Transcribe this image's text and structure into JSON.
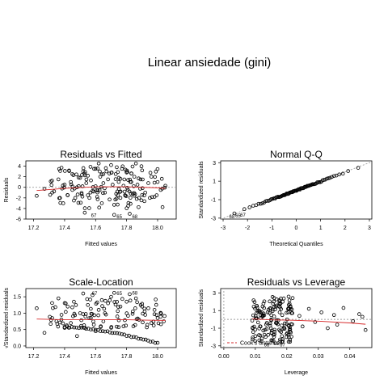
{
  "page": {
    "title": "Linear ansiedade (gini)"
  },
  "colors": {
    "points": "#000000",
    "smooth": "#d62728",
    "reference": "#9e9e9e",
    "background": "#ffffff"
  },
  "chart_data": [
    {
      "id": "residuals-vs-fitted",
      "type": "scatter",
      "title": "Residuals vs Fitted",
      "xlabel": "Fitted values",
      "ylabel": "Residuals",
      "xlim": [
        17.15,
        18.12
      ],
      "ylim": [
        -6,
        5
      ],
      "xticks": [
        17.2,
        17.4,
        17.6,
        17.8,
        18.0
      ],
      "xtick_labels": [
        "17.2",
        "17.4",
        "17.6",
        "17.8",
        "18.0"
      ],
      "yticks": [
        -6,
        -4,
        -2,
        0,
        2,
        4
      ],
      "ytick_labels": [
        "-6",
        "-4",
        "-2",
        "0",
        "2",
        "4"
      ],
      "hline": 0,
      "points": [
        [
          17.22,
          -1.6
        ],
        [
          17.27,
          -0.3
        ],
        [
          17.32,
          -1.0
        ],
        [
          17.36,
          1.5
        ],
        [
          17.37,
          -2.0
        ],
        [
          17.38,
          3.7
        ],
        [
          17.4,
          0.5
        ],
        [
          17.42,
          -1.5
        ],
        [
          17.44,
          1.0
        ],
        [
          17.45,
          2.5
        ],
        [
          17.46,
          -2.5
        ],
        [
          17.48,
          0.0
        ],
        [
          17.5,
          1.8
        ],
        [
          17.51,
          -1.3
        ],
        [
          17.52,
          3.0
        ],
        [
          17.53,
          -4.8
        ],
        [
          17.54,
          0.8
        ],
        [
          17.55,
          2.2
        ],
        [
          17.56,
          -2.0
        ],
        [
          17.57,
          1.3
        ],
        [
          17.58,
          -0.7
        ],
        [
          17.59,
          3.5
        ],
        [
          17.6,
          0.2
        ],
        [
          17.61,
          -1.8
        ],
        [
          17.62,
          4.5
        ],
        [
          17.63,
          2.0
        ],
        [
          17.64,
          -3.0
        ],
        [
          17.65,
          0.8
        ],
        [
          17.66,
          -1.0
        ],
        [
          17.67,
          3.0
        ],
        [
          17.68,
          1.5
        ],
        [
          17.69,
          -2.3
        ],
        [
          17.7,
          4.2
        ],
        [
          17.71,
          0.5
        ],
        [
          17.72,
          -5.2
        ],
        [
          17.73,
          2.5
        ],
        [
          17.74,
          -0.8
        ],
        [
          17.75,
          1.8
        ],
        [
          17.76,
          -2.0
        ],
        [
          17.77,
          3.5
        ],
        [
          17.78,
          0.3
        ],
        [
          17.79,
          -1.5
        ],
        [
          17.8,
          2.8
        ],
        [
          17.81,
          -3.5
        ],
        [
          17.82,
          -5.0
        ],
        [
          17.83,
          1.0
        ],
        [
          17.84,
          -1.2
        ],
        [
          17.85,
          2.0
        ],
        [
          17.86,
          4.5
        ],
        [
          17.87,
          0.5
        ],
        [
          17.88,
          -2.0
        ],
        [
          17.89,
          1.5
        ],
        [
          17.9,
          3.2
        ],
        [
          17.92,
          -1.0
        ],
        [
          17.94,
          0.8
        ],
        [
          17.96,
          2.0
        ],
        [
          17.98,
          -1.8
        ],
        [
          18.0,
          1.0
        ],
        [
          18.02,
          -0.5
        ],
        [
          18.05,
          0.3
        ],
        [
          17.45,
          -0.5
        ],
        [
          17.55,
          -1.5
        ],
        [
          17.65,
          2.5
        ],
        [
          17.75,
          -0.3
        ],
        [
          17.85,
          -1.6
        ],
        [
          17.95,
          -2.0
        ]
      ],
      "smooth": [
        [
          17.22,
          -0.6
        ],
        [
          17.4,
          -0.2
        ],
        [
          17.6,
          0.1
        ],
        [
          17.8,
          0.1
        ],
        [
          18.0,
          -0.1
        ],
        [
          18.05,
          -0.2
        ]
      ],
      "annotations": [
        {
          "text": "67",
          "x": 17.555,
          "y": -5.3
        },
        {
          "text": "65",
          "x": 17.72,
          "y": -5.55
        },
        {
          "text": "68",
          "x": 17.82,
          "y": -5.55
        }
      ]
    },
    {
      "id": "normal-qq",
      "type": "scatter",
      "title": "Normal Q-Q",
      "xlabel": "Theoretical Quantiles",
      "ylabel": "Standardized residuals",
      "xlim": [
        -3.1,
        3.1
      ],
      "ylim": [
        -3.1,
        3.2
      ],
      "xticks": [
        -3,
        -2,
        -1,
        0,
        1,
        2,
        3
      ],
      "xtick_labels": [
        "-3",
        "-2",
        "-1",
        "0",
        "1",
        "2",
        "3"
      ],
      "yticks": [
        -3,
        -1,
        1,
        3
      ],
      "ytick_labels": [
        "-3",
        "-1",
        "1",
        "3"
      ],
      "reference_line": {
        "from": [
          -3.1,
          -3.1
        ],
        "to": [
          3.1,
          3.1
        ]
      },
      "qq_points": 90,
      "qq_range": [
        -3.0,
        2.9
      ],
      "annotations": [
        {
          "text": "68",
          "x": -2.85,
          "y": -2.85
        },
        {
          "text": "65",
          "x": -2.6,
          "y": -2.75
        },
        {
          "text": "67",
          "x": -2.4,
          "y": -2.65
        }
      ]
    },
    {
      "id": "scale-location",
      "type": "scatter",
      "title": "Scale-Location",
      "xlabel": "Fitted values",
      "ylabel": "√Standardized residuals",
      "xlim": [
        17.15,
        18.12
      ],
      "ylim": [
        -0.05,
        1.75
      ],
      "xticks": [
        17.2,
        17.4,
        17.6,
        17.8,
        18.0
      ],
      "xtick_labels": [
        "17.2",
        "17.4",
        "17.6",
        "17.8",
        "18.0"
      ],
      "yticks": [
        0.0,
        0.5,
        1.0,
        1.5
      ],
      "ytick_labels": [
        "0.0",
        "0.5",
        "1.0",
        "1.5"
      ],
      "points": [
        [
          17.22,
          1.15
        ],
        [
          17.27,
          0.4
        ],
        [
          17.32,
          0.85
        ],
        [
          17.36,
          1.45
        ],
        [
          17.38,
          0.95
        ],
        [
          17.4,
          0.55
        ],
        [
          17.42,
          1.2
        ],
        [
          17.44,
          0.7
        ],
        [
          17.46,
          1.35
        ],
        [
          17.48,
          0.3
        ],
        [
          17.5,
          1.0
        ],
        [
          17.52,
          1.6
        ],
        [
          17.53,
          0.55
        ],
        [
          17.55,
          1.25
        ],
        [
          17.56,
          0.85
        ],
        [
          17.58,
          1.55
        ],
        [
          17.6,
          0.45
        ],
        [
          17.62,
          1.1
        ],
        [
          17.64,
          1.4
        ],
        [
          17.65,
          0.75
        ],
        [
          17.66,
          1.0
        ],
        [
          17.68,
          1.3
        ],
        [
          17.7,
          1.5
        ],
        [
          17.72,
          1.62
        ],
        [
          17.74,
          0.9
        ],
        [
          17.76,
          1.2
        ],
        [
          17.78,
          0.6
        ],
        [
          17.8,
          1.35
        ],
        [
          17.82,
          1.58
        ],
        [
          17.84,
          1.05
        ],
        [
          17.86,
          1.45
        ],
        [
          17.88,
          0.8
        ],
        [
          17.9,
          1.2
        ],
        [
          17.92,
          0.95
        ],
        [
          17.94,
          1.15
        ],
        [
          17.96,
          0.7
        ],
        [
          17.98,
          1.1
        ],
        [
          18.0,
          0.85
        ],
        [
          18.02,
          1.0
        ],
        [
          18.04,
          0.75
        ]
      ],
      "lower_curve": [
        [
          17.4,
          0.55
        ],
        [
          17.5,
          0.55
        ],
        [
          17.6,
          0.5
        ],
        [
          17.7,
          0.42
        ],
        [
          17.8,
          0.35
        ],
        [
          17.9,
          0.25
        ],
        [
          18.0,
          0.1
        ]
      ],
      "smooth": [
        [
          17.22,
          0.82
        ],
        [
          17.4,
          0.8
        ],
        [
          17.6,
          0.8
        ],
        [
          17.8,
          0.8
        ],
        [
          18.0,
          0.78
        ],
        [
          18.05,
          0.78
        ]
      ],
      "annotations": [
        {
          "text": "67",
          "x": 17.56,
          "y": 1.6
        },
        {
          "text": "65",
          "x": 17.72,
          "y": 1.6
        },
        {
          "text": "68",
          "x": 17.82,
          "y": 1.62
        }
      ]
    },
    {
      "id": "residuals-vs-leverage",
      "type": "scatter",
      "title": "Residuals vs Leverage",
      "xlabel": "Leverage",
      "ylabel": "Standardized residuals",
      "xlim": [
        -0.001,
        0.047
      ],
      "ylim": [
        -3.2,
        3.5
      ],
      "xticks": [
        0.0,
        0.01,
        0.02,
        0.03,
        0.04
      ],
      "xtick_labels": [
        "0.00",
        "0.01",
        "0.02",
        "0.03",
        "0.04"
      ],
      "yticks": [
        -3,
        -1,
        1,
        3
      ],
      "ytick_labels": [
        "-3",
        "-1",
        "1",
        "3"
      ],
      "cluster": {
        "x_range": [
          0.009,
          0.022
        ],
        "y_range": [
          -2.6,
          2.6
        ],
        "count": 160
      },
      "points": [
        [
          0.024,
          0.4
        ],
        [
          0.025,
          -0.8
        ],
        [
          0.027,
          1.2
        ],
        [
          0.029,
          -0.3
        ],
        [
          0.031,
          0.8
        ],
        [
          0.033,
          -1.0
        ],
        [
          0.035,
          0.5
        ],
        [
          0.036,
          -0.6
        ],
        [
          0.038,
          1.3
        ],
        [
          0.041,
          -0.2
        ],
        [
          0.044,
          0.3
        ],
        [
          0.045,
          -1.2
        ],
        [
          0.043,
          0.6
        ]
      ],
      "smooth": [
        [
          0.009,
          0.05
        ],
        [
          0.015,
          -0.05
        ],
        [
          0.022,
          -0.1
        ],
        [
          0.03,
          -0.2
        ],
        [
          0.04,
          -0.4
        ],
        [
          0.045,
          -0.55
        ]
      ],
      "legend": "Cook's distance",
      "annotations": [
        {
          "text": "68",
          "x": 0.012,
          "y": -2.9
        },
        {
          "text": "65",
          "x": 0.015,
          "y": -2.75
        },
        {
          "text": "67",
          "x": 0.017,
          "y": -2.9
        }
      ]
    }
  ]
}
